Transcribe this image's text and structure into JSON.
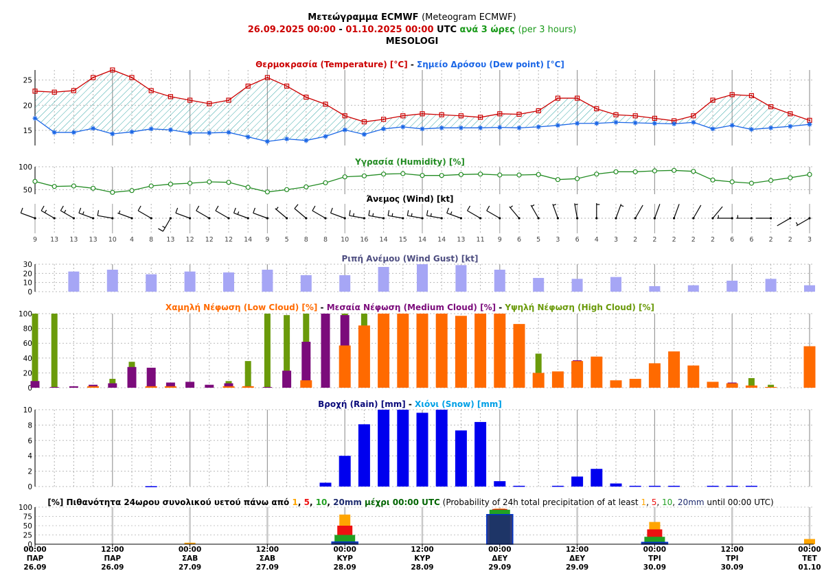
{
  "header": {
    "title_gr": "Μετεώγραμμα ECMWF",
    "title_en": "(Meteogram ECMWF)",
    "period_start": "26.09.2025 00:00",
    "sep": "-",
    "period_end": "01.10.2025 00:00",
    "utc": "UTC",
    "step_gr": "ανά 3 ώρες",
    "step_en": "(per 3 hours)",
    "location": "MESOLOGI"
  },
  "colors": {
    "temperature": "#cc0000",
    "dewpoint": "#1a66e6",
    "humidity": "#228b22",
    "gust": "#a6a6f5",
    "low_cloud": "#ff6a00",
    "medium_cloud": "#7b0b7b",
    "high_cloud": "#6a9a0a",
    "rain": "#0000ee",
    "snow": "#00a0e6",
    "prob_1mm": "#ffa500",
    "prob_5mm": "#ee1111",
    "prob_10mm": "#22a022",
    "prob_20mm": "#1e2b6e"
  },
  "time_axis": {
    "ticks": [
      {
        "time": "00:00",
        "day": "ΠΑΡ",
        "date": "26.09"
      },
      {
        "time": "12:00",
        "day": "ΠΑΡ",
        "date": "26.09"
      },
      {
        "time": "00:00",
        "day": "ΣΑΒ",
        "date": "27.09"
      },
      {
        "time": "12:00",
        "day": "ΣΑΒ",
        "date": "27.09"
      },
      {
        "time": "00:00",
        "day": "ΚΥΡ",
        "date": "28.09"
      },
      {
        "time": "12:00",
        "day": "ΚΥΡ",
        "date": "28.09"
      },
      {
        "time": "00:00",
        "day": "ΔΕΥ",
        "date": "29.09"
      },
      {
        "time": "12:00",
        "day": "ΔΕΥ",
        "date": "29.09"
      },
      {
        "time": "00:00",
        "day": "ΤΡΙ",
        "date": "30.09"
      },
      {
        "time": "12:00",
        "day": "ΤΡΙ",
        "date": "30.09"
      },
      {
        "time": "00:00",
        "day": "ΤΕΤ",
        "date": "01.10"
      }
    ]
  },
  "chart_data": [
    {
      "type": "line",
      "title_parts": [
        {
          "text": "Θερμοκρασία (Temperature) [°C]",
          "color": "#cc0000"
        },
        {
          "text": " - ",
          "color": "#000000"
        },
        {
          "text": "Σημείο Δρόσου (Dew point) [°C]",
          "color": "#1a66e6"
        }
      ],
      "ylim": [
        12,
        27
      ],
      "yticks": [
        15,
        20,
        25
      ],
      "series": [
        {
          "name": "Temperature",
          "color": "#cc0000",
          "marker": "square",
          "values": [
            22.8,
            22.6,
            22.9,
            25.5,
            27.0,
            25.5,
            22.9,
            21.7,
            21.0,
            20.3,
            21.0,
            23.8,
            25.5,
            23.8,
            21.6,
            20.2,
            17.9,
            16.7,
            17.2,
            17.9,
            18.3,
            18.1,
            17.9,
            17.6,
            18.3,
            18.2,
            18.9,
            21.4,
            21.4,
            19.3,
            18.1,
            17.9,
            17.4,
            16.9,
            17.9,
            21.0,
            22.1,
            21.9,
            19.7,
            18.3,
            17.0
          ]
        },
        {
          "name": "Dew point",
          "color": "#1a66e6",
          "marker": "star",
          "values": [
            17.4,
            14.6,
            14.6,
            15.4,
            14.3,
            14.7,
            15.3,
            15.1,
            14.5,
            14.5,
            14.6,
            13.7,
            12.8,
            13.3,
            13.0,
            13.8,
            15.1,
            14.2,
            15.3,
            15.7,
            15.3,
            15.5,
            15.5,
            15.5,
            15.6,
            15.5,
            15.7,
            16.0,
            16.4,
            16.4,
            16.6,
            16.5,
            16.4,
            16.3,
            16.6,
            15.3,
            16.0,
            15.2,
            15.5,
            15.8,
            16.2
          ]
        }
      ]
    },
    {
      "type": "line",
      "title_parts": [
        {
          "text": "Υγρασία (Humidity) [%]",
          "color": "#228b22"
        }
      ],
      "ylim": [
        40,
        100
      ],
      "yticks": [
        50,
        100
      ],
      "series": [
        {
          "name": "Humidity",
          "color": "#228b22",
          "marker": "circle",
          "values": [
            68,
            57,
            58,
            53,
            44,
            48,
            58,
            62,
            64,
            67,
            66,
            55,
            45,
            50,
            56,
            65,
            78,
            80,
            84,
            85,
            81,
            81,
            83,
            84,
            82,
            82,
            83,
            72,
            74,
            84,
            89,
            89,
            91,
            92,
            90,
            71,
            67,
            64,
            70,
            76,
            83
          ]
        }
      ]
    },
    {
      "type": "wind_barbs",
      "title": "Άνεμος (Wind) [kt]",
      "speeds": [
        9,
        13,
        13,
        13,
        10,
        4,
        8,
        13,
        12,
        12,
        12,
        14,
        9,
        5,
        8,
        8,
        10,
        16,
        14,
        15,
        14,
        14,
        13,
        11,
        9,
        6,
        5,
        3,
        6,
        4,
        3,
        2,
        2,
        2,
        2,
        2,
        6,
        6,
        2,
        2,
        3
      ],
      "directions_deg": [
        290,
        300,
        300,
        290,
        280,
        290,
        300,
        210,
        290,
        300,
        300,
        290,
        290,
        310,
        310,
        300,
        290,
        280,
        280,
        280,
        280,
        280,
        290,
        300,
        300,
        320,
        330,
        340,
        350,
        360,
        20,
        30,
        20,
        20,
        30,
        40,
        270,
        270,
        270,
        240,
        240
      ]
    },
    {
      "type": "bar",
      "title_parts": [
        {
          "text": "Ριπή Ανέμου (Wind Gust) [kt]",
          "color": "#4d4d80"
        }
      ],
      "ylim": [
        0,
        30
      ],
      "yticks": [
        0,
        10,
        20,
        30
      ],
      "color": "#a6a6f5",
      "step_index": 2,
      "values": [
        22,
        24,
        19,
        22,
        21,
        24,
        18,
        18,
        27,
        30,
        29,
        24,
        15,
        14,
        16,
        6,
        7,
        12,
        14,
        7
      ]
    },
    {
      "type": "bar",
      "title_parts": [
        {
          "text": "Χαμηλή Νέφωση (Low Cloud) [%]",
          "color": "#ff6a00"
        },
        {
          "text": " - ",
          "color": "#000000"
        },
        {
          "text": "Μεσαία Νέφωση (Medium Cloud) [%]",
          "color": "#7b0b7b"
        },
        {
          "text": " - ",
          "color": "#000000"
        },
        {
          "text": "Υψηλή Νέφωση (High Cloud) [%]",
          "color": "#6a9a0a"
        }
      ],
      "ylim": [
        0,
        100
      ],
      "yticks": [
        0,
        20,
        40,
        60,
        80,
        100
      ],
      "series": [
        {
          "name": "Low Cloud",
          "color": "#ff6a00",
          "values": [
            0,
            0,
            0,
            2,
            0,
            0,
            2,
            2,
            0,
            0,
            2,
            2,
            0,
            0,
            10,
            0,
            57,
            84,
            100,
            100,
            100,
            100,
            97,
            100,
            100,
            86,
            20,
            22,
            36,
            42,
            10,
            12,
            33,
            49,
            30,
            8,
            6,
            3,
            1,
            0,
            56
          ]
        },
        {
          "name": "Medium Cloud",
          "color": "#7b0b7b",
          "values": [
            9,
            1,
            2,
            4,
            6,
            28,
            27,
            7,
            8,
            4,
            6,
            2,
            1,
            23,
            62,
            100,
            98,
            0,
            0,
            0,
            0,
            0,
            0,
            0,
            0,
            0,
            0,
            0,
            37,
            0,
            0,
            0,
            0,
            0,
            0,
            0,
            7,
            0,
            0,
            0,
            0
          ]
        },
        {
          "name": "High Cloud",
          "color": "#6a9a0a",
          "values": [
            100,
            100,
            0,
            0,
            12,
            35,
            0,
            0,
            0,
            0,
            9,
            36,
            100,
            98,
            100,
            0,
            100,
            100,
            0,
            0,
            0,
            0,
            0,
            0,
            0,
            0,
            46,
            0,
            0,
            0,
            0,
            0,
            0,
            0,
            0,
            0,
            0,
            13,
            4,
            0,
            0
          ]
        }
      ]
    },
    {
      "type": "bar",
      "title_parts": [
        {
          "text": "Βροχή (Rain) [mm]",
          "color": "#0a0a7a"
        },
        {
          "text": " - ",
          "color": "#000000"
        },
        {
          "text": "Χιόνι (Snow) [mm]",
          "color": "#00a0e6"
        }
      ],
      "ylim": [
        0,
        10
      ],
      "yticks": [
        0,
        2,
        4,
        6,
        8,
        10
      ],
      "series": [
        {
          "name": "Rain",
          "color": "#0000ee",
          "values": [
            0,
            0,
            0,
            0,
            0,
            0,
            0.05,
            0,
            0,
            0,
            0,
            0,
            0,
            0,
            0,
            0.5,
            4.0,
            8.1,
            10.0,
            10.0,
            9.6,
            10.0,
            7.3,
            8.4,
            0.7,
            0.1,
            0,
            0.1,
            1.3,
            2.3,
            0.4,
            0.1,
            0.1,
            0.1,
            0,
            0.1,
            0.1,
            0.1,
            0,
            0,
            0
          ]
        },
        {
          "name": "Snow",
          "color": "#00a0e6",
          "values": [
            0,
            0,
            0,
            0,
            0,
            0,
            0,
            0,
            0,
            0,
            0,
            0,
            0,
            0,
            0,
            0,
            0,
            0,
            0,
            0,
            0,
            0,
            0,
            0,
            0,
            0,
            0,
            0,
            0,
            0,
            0,
            0,
            0,
            0,
            0,
            0,
            0,
            0,
            0,
            0,
            0
          ]
        }
      ]
    },
    {
      "type": "bar",
      "title_parts": [
        {
          "text": "[%] Πιθανότητα 24ωρου συνολικού υετού πάνω από ",
          "color": "#000000",
          "bold": true
        },
        {
          "text": "1",
          "color": "#ffa500",
          "bold": true
        },
        {
          "text": ", ",
          "color": "#000000",
          "bold": true
        },
        {
          "text": "5",
          "color": "#ee1111",
          "bold": true
        },
        {
          "text": ", ",
          "color": "#000000",
          "bold": true
        },
        {
          "text": "10",
          "color": "#22a022",
          "bold": true
        },
        {
          "text": ", ",
          "color": "#000000",
          "bold": true
        },
        {
          "text": "20mm",
          "color": "#1e2b6e",
          "bold": true
        },
        {
          "text": " μέχρι 00:00 UTC",
          "color": "#006400",
          "bold": true
        },
        {
          "text": " (Probability of 24h total precipitation of at least ",
          "color": "#000000",
          "bold": false
        },
        {
          "text": "1",
          "color": "#ffa500",
          "bold": false
        },
        {
          "text": ", ",
          "color": "#000000",
          "bold": false
        },
        {
          "text": "5",
          "color": "#ee1111",
          "bold": false
        },
        {
          "text": ", ",
          "color": "#000000",
          "bold": false
        },
        {
          "text": "10",
          "color": "#22a022",
          "bold": false
        },
        {
          "text": ", ",
          "color": "#000000",
          "bold": false
        },
        {
          "text": "20mm",
          "color": "#1e2b6e",
          "bold": false
        },
        {
          "text": " until 00:00 UTC)",
          "color": "#000000",
          "bold": false
        }
      ],
      "ylim": [
        0,
        100
      ],
      "yticks": [
        0,
        25,
        50,
        75,
        100
      ],
      "categories": [
        "26.09",
        "27.09",
        "28.09",
        "29.09",
        "30.09",
        "01.10"
      ],
      "series": [
        {
          "name": "1",
          "color": "#ffa500",
          "values": [
            0,
            4,
            80,
            96,
            60,
            14
          ]
        },
        {
          "name": "5",
          "color": "#ee1111",
          "values": [
            0,
            0,
            50,
            95,
            40,
            0
          ]
        },
        {
          "name": "10",
          "color": "#22a022",
          "values": [
            0,
            0,
            25,
            93,
            20,
            0
          ]
        },
        {
          "name": "20",
          "color": "#1e2b6e",
          "values": [
            0,
            0,
            6,
            80,
            5,
            0
          ]
        }
      ]
    }
  ]
}
